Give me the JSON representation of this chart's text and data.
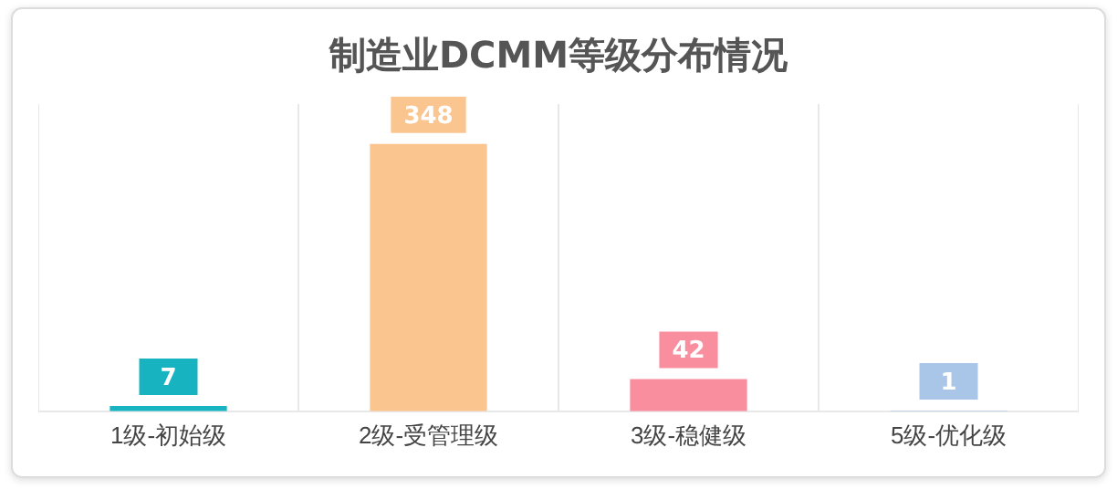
{
  "chart_data": {
    "type": "bar",
    "title": "制造业DCMM等级分布情况",
    "categories": [
      "1级-初始级",
      "2级-受管理级",
      "3级-稳健级",
      "5级-优化级"
    ],
    "values": [
      7,
      348,
      42,
      1
    ],
    "colors": [
      "#17b3c1",
      "#fbc590",
      "#f98e9f",
      "#a9c5e8"
    ],
    "data_labels": true,
    "grid": "x",
    "tick_labels": "x",
    "legend": false
  }
}
